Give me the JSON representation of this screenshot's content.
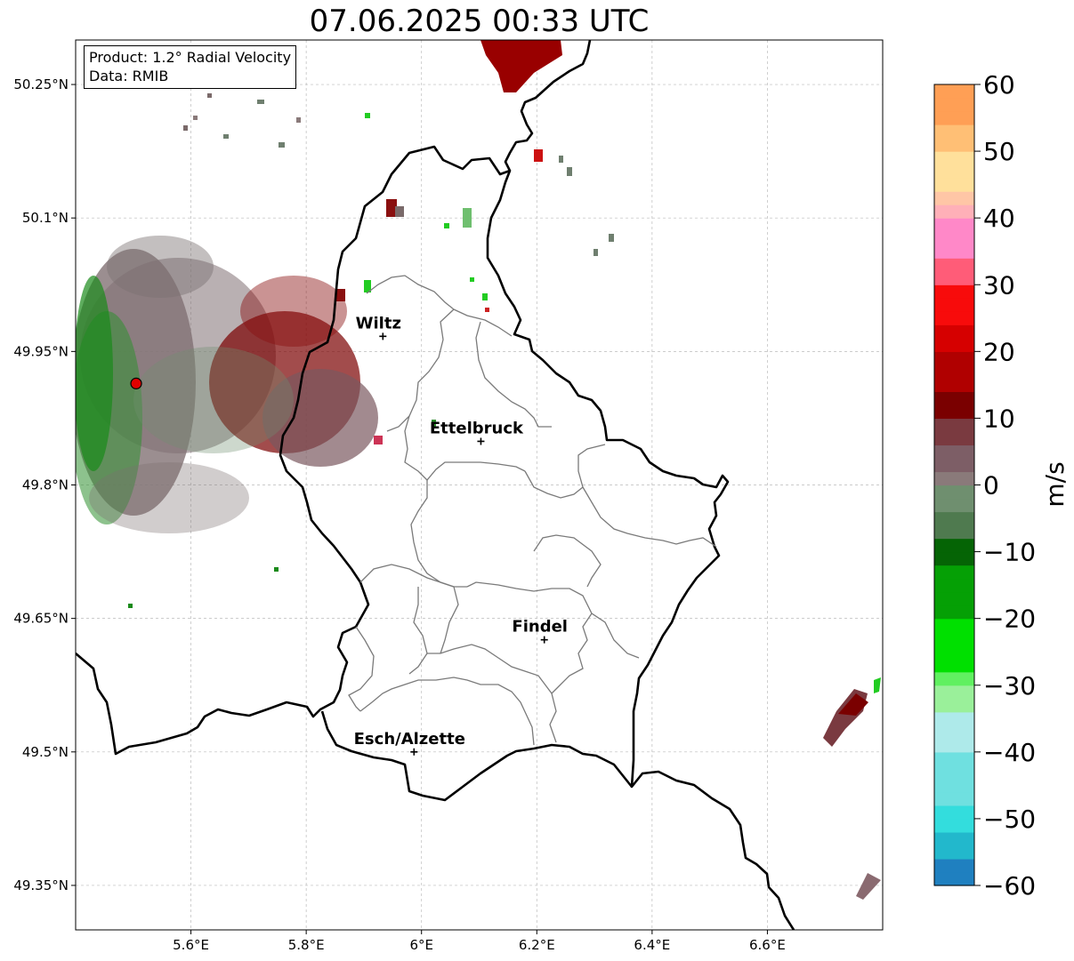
{
  "title": "07.06.2025 00:33 UTC",
  "info": {
    "product": "Product: 1.2° Radial Velocity",
    "data": "Data: RMIB"
  },
  "map": {
    "lon_range": [
      5.4,
      6.8
    ],
    "lat_range": [
      49.3,
      50.3
    ],
    "lat_ticks": [
      {
        "value": 50.25,
        "label": "50.25°N"
      },
      {
        "value": 50.1,
        "label": "50.1°N"
      },
      {
        "value": 49.95,
        "label": "49.95°N"
      },
      {
        "value": 49.8,
        "label": "49.8°N"
      },
      {
        "value": 49.65,
        "label": "49.65°N"
      },
      {
        "value": 49.5,
        "label": "49.5°N"
      },
      {
        "value": 49.35,
        "label": "49.35°N"
      }
    ],
    "lon_ticks": [
      {
        "value": 5.6,
        "label": "5.6°E"
      },
      {
        "value": 5.8,
        "label": "5.8°E"
      },
      {
        "value": 6.0,
        "label": "6°E"
      },
      {
        "value": 6.2,
        "label": "6.2°E"
      },
      {
        "value": 6.4,
        "label": "6.4°E"
      },
      {
        "value": 6.6,
        "label": "6.6°E"
      }
    ],
    "gridlines": true,
    "radar_site": {
      "lon": 5.505,
      "lat": 49.914
    },
    "cities": [
      {
        "name": "Wiltz",
        "lon": 5.933,
        "lat": 49.967
      },
      {
        "name": "Ettelbruck",
        "lon": 6.103,
        "lat": 49.849
      },
      {
        "name": "Findel",
        "lon": 6.213,
        "lat": 49.626
      },
      {
        "name": "Esch/Alzette",
        "lon": 5.987,
        "lat": 49.5
      }
    ]
  },
  "colorbar": {
    "unit": "m/s",
    "min": -60,
    "max": 60,
    "ticks": [
      60,
      50,
      40,
      30,
      20,
      10,
      0,
      -10,
      -20,
      -30,
      -40,
      -50,
      -60
    ],
    "tick_labels": [
      "60",
      "50",
      "40",
      "30",
      "20",
      "10",
      "0",
      "−10",
      "−20",
      "−30",
      "−40",
      "−50",
      "−60"
    ]
  }
}
